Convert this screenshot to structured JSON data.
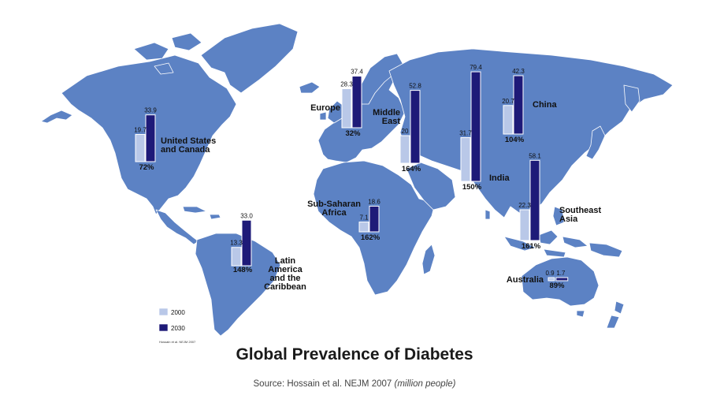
{
  "title": "Global Prevalence of Diabetes",
  "source": {
    "text": "Source: Hossain et al. NEJM 2007",
    "unit": "(million people)"
  },
  "map_citation": "Hossain et al. NEJM 2007",
  "legend": [
    {
      "label": "2000",
      "color": "#b9c8e8"
    },
    {
      "label": "2030",
      "color": "#1e1a78"
    }
  ],
  "colors": {
    "land": "#5c82c4",
    "bar_2000": "#b9c8e8",
    "bar_2030": "#1e1a78"
  },
  "chart_data": {
    "type": "bar",
    "series": [
      {
        "name": "2000",
        "values": [
          19.7,
          28.3,
          20,
          20.7,
          31.7,
          22.3,
          7.1,
          13.3,
          0.9
        ]
      },
      {
        "name": "2030",
        "values": [
          33.9,
          37.4,
          52.8,
          42.3,
          79.4,
          58.1,
          18.6,
          33.0,
          1.7
        ]
      }
    ],
    "regions": [
      {
        "name": "United States and Canada",
        "name_lines": [
          "United States",
          "and Canada"
        ],
        "v2000": 19.7,
        "v2030": 33.9,
        "v2000_label": "19.7",
        "v2030_label": "33.9",
        "increase": "72%"
      },
      {
        "name": "Europe",
        "name_lines": [
          "Europe"
        ],
        "v2000": 28.3,
        "v2030": 37.4,
        "v2000_label": "28.3",
        "v2030_label": "37.4",
        "increase": "32%"
      },
      {
        "name": "Middle East",
        "name_lines": [
          "Middle",
          "East"
        ],
        "v2000": 20,
        "v2030": 52.8,
        "v2000_label": "20",
        "v2030_label": "52.8",
        "increase": "164%"
      },
      {
        "name": "China",
        "name_lines": [
          "China"
        ],
        "v2000": 20.7,
        "v2030": 42.3,
        "v2000_label": "20.7",
        "v2030_label": "42.3",
        "increase": "104%"
      },
      {
        "name": "India",
        "name_lines": [
          "India"
        ],
        "v2000": 31.7,
        "v2030": 79.4,
        "v2000_label": "31.7",
        "v2030_label": "79.4",
        "increase": "150%"
      },
      {
        "name": "Southeast Asia",
        "name_lines": [
          "Southeast",
          "Asia"
        ],
        "v2000": 22.3,
        "v2030": 58.1,
        "v2000_label": "22.3",
        "v2030_label": "58.1",
        "increase": "161%"
      },
      {
        "name": "Sub-Saharan Africa",
        "name_lines": [
          "Sub-Saharan",
          "Africa"
        ],
        "v2000": 7.1,
        "v2030": 18.6,
        "v2000_label": "7.1",
        "v2030_label": "18.6",
        "increase": "162%"
      },
      {
        "name": "Latin America and the Caribbean",
        "name_lines": [
          "Latin",
          "America",
          "and the",
          "Caribbean"
        ],
        "v2000": 13.3,
        "v2030": 33.0,
        "v2000_label": "13.3",
        "v2030_label": "33.0",
        "increase": "148%"
      },
      {
        "name": "Australia",
        "name_lines": [
          "Australia"
        ],
        "v2000": 0.9,
        "v2030": 1.7,
        "v2000_label": "0.9",
        "v2030_label": "1.7",
        "increase": "89%"
      }
    ]
  }
}
